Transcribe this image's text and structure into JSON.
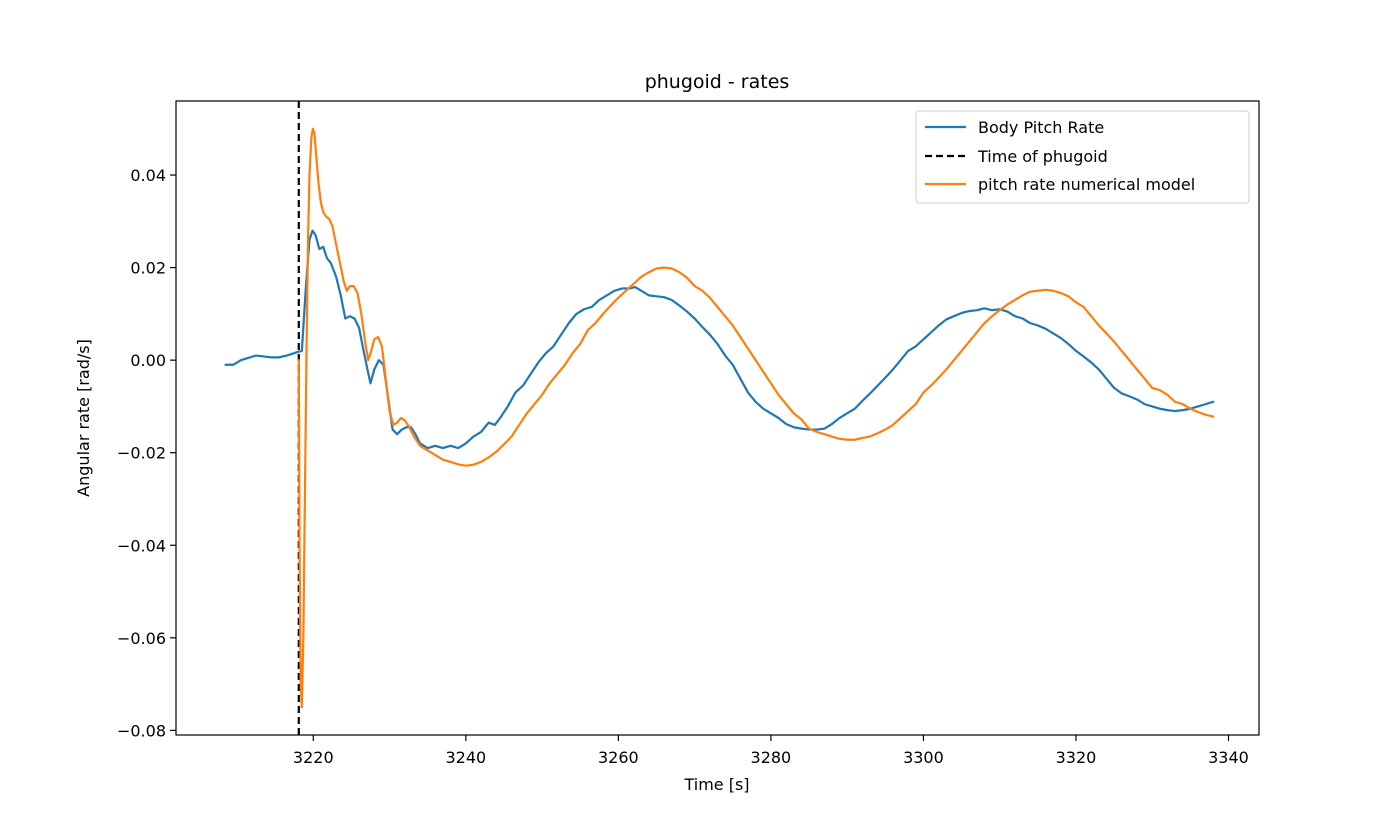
{
  "chart_data": {
    "type": "line",
    "title": "phugoid - rates",
    "xlabel": "Time [s]",
    "ylabel": "Angular rate [rad/s]",
    "xlim": [
      3202,
      3344
    ],
    "ylim": [
      -0.081,
      0.056
    ],
    "x_ticks": [
      3220,
      3240,
      3260,
      3280,
      3300,
      3320,
      3340
    ],
    "y_ticks": [
      -0.08,
      -0.06,
      -0.04,
      -0.02,
      0.0,
      0.02,
      0.04
    ],
    "y_tick_labels": [
      "−0.08",
      "−0.06",
      "−0.04",
      "−0.02",
      "0.00",
      "0.02",
      "0.04"
    ],
    "grid": false,
    "legend_position": "top-right",
    "series": [
      {
        "name": "Body Pitch Rate",
        "color": "#1f77b4",
        "style": "solid",
        "points": [
          [
            3208.5,
            -0.001
          ],
          [
            3209.5,
            -0.001
          ],
          [
            3210.5,
            0.0
          ],
          [
            3211.5,
            0.0005
          ],
          [
            3212.5,
            0.001
          ],
          [
            3213.5,
            0.0008
          ],
          [
            3214.5,
            0.0006
          ],
          [
            3215.5,
            0.0006
          ],
          [
            3216.5,
            0.001
          ],
          [
            3217.5,
            0.0015
          ],
          [
            3218.0,
            0.0018
          ],
          [
            3218.5,
            0.002
          ],
          [
            3219.0,
            0.015
          ],
          [
            3219.5,
            0.026
          ],
          [
            3219.9,
            0.028
          ],
          [
            3220.3,
            0.027
          ],
          [
            3220.8,
            0.024
          ],
          [
            3221.3,
            0.0245
          ],
          [
            3221.8,
            0.022
          ],
          [
            3222.3,
            0.021
          ],
          [
            3223.0,
            0.018
          ],
          [
            3223.6,
            0.014
          ],
          [
            3224.2,
            0.009
          ],
          [
            3224.8,
            0.0095
          ],
          [
            3225.4,
            0.009
          ],
          [
            3226.0,
            0.007
          ],
          [
            3226.6,
            0.002
          ],
          [
            3227.1,
            -0.002
          ],
          [
            3227.5,
            -0.005
          ],
          [
            3228.0,
            -0.002
          ],
          [
            3228.6,
            0.0
          ],
          [
            3229.2,
            -0.001
          ],
          [
            3229.8,
            -0.008
          ],
          [
            3230.4,
            -0.015
          ],
          [
            3231.0,
            -0.016
          ],
          [
            3231.6,
            -0.015
          ],
          [
            3232.2,
            -0.0145
          ],
          [
            3232.8,
            -0.0145
          ],
          [
            3233.4,
            -0.016
          ],
          [
            3234.0,
            -0.018
          ],
          [
            3235.0,
            -0.019
          ],
          [
            3236.0,
            -0.0185
          ],
          [
            3237.0,
            -0.019
          ],
          [
            3238.0,
            -0.0185
          ],
          [
            3239.0,
            -0.019
          ],
          [
            3240.0,
            -0.018
          ],
          [
            3241.0,
            -0.0165
          ],
          [
            3242.0,
            -0.0155
          ],
          [
            3243.0,
            -0.0135
          ],
          [
            3243.8,
            -0.014
          ],
          [
            3244.5,
            -0.0125
          ],
          [
            3245.5,
            -0.01
          ],
          [
            3246.5,
            -0.007
          ],
          [
            3247.5,
            -0.0055
          ],
          [
            3248.5,
            -0.003
          ],
          [
            3249.5,
            -0.0005
          ],
          [
            3250.5,
            0.0015
          ],
          [
            3251.5,
            0.003
          ],
          [
            3252.5,
            0.0055
          ],
          [
            3253.5,
            0.008
          ],
          [
            3254.5,
            0.01
          ],
          [
            3255.5,
            0.011
          ],
          [
            3256.5,
            0.0115
          ],
          [
            3257.5,
            0.013
          ],
          [
            3258.5,
            0.014
          ],
          [
            3259.5,
            0.015
          ],
          [
            3260.5,
            0.0155
          ],
          [
            3261.5,
            0.0155
          ],
          [
            3262.2,
            0.0158
          ],
          [
            3263.0,
            0.015
          ],
          [
            3264.0,
            0.014
          ],
          [
            3265.0,
            0.0138
          ],
          [
            3266.0,
            0.0136
          ],
          [
            3267.0,
            0.013
          ],
          [
            3268.0,
            0.0118
          ],
          [
            3269.0,
            0.0105
          ],
          [
            3270.0,
            0.009
          ],
          [
            3271.0,
            0.0072
          ],
          [
            3272.0,
            0.0055
          ],
          [
            3273.0,
            0.0035
          ],
          [
            3274.0,
            0.001
          ],
          [
            3275.0,
            -0.001
          ],
          [
            3276.0,
            -0.004
          ],
          [
            3277.0,
            -0.007
          ],
          [
            3278.0,
            -0.009
          ],
          [
            3279.0,
            -0.0105
          ],
          [
            3280.0,
            -0.0115
          ],
          [
            3281.0,
            -0.0125
          ],
          [
            3282.0,
            -0.0138
          ],
          [
            3283.0,
            -0.0145
          ],
          [
            3284.0,
            -0.0148
          ],
          [
            3285.0,
            -0.015
          ],
          [
            3286.0,
            -0.015
          ],
          [
            3287.0,
            -0.0148
          ],
          [
            3288.0,
            -0.0138
          ],
          [
            3289.0,
            -0.0125
          ],
          [
            3290.0,
            -0.0115
          ],
          [
            3291.0,
            -0.0105
          ],
          [
            3292.0,
            -0.0088
          ],
          [
            3293.0,
            -0.0072
          ],
          [
            3294.0,
            -0.0055
          ],
          [
            3295.0,
            -0.0038
          ],
          [
            3296.0,
            -0.002
          ],
          [
            3297.0,
            0.0
          ],
          [
            3298.0,
            0.002
          ],
          [
            3299.0,
            0.003
          ],
          [
            3300.0,
            0.0045
          ],
          [
            3301.0,
            0.006
          ],
          [
            3302.0,
            0.0075
          ],
          [
            3303.0,
            0.0088
          ],
          [
            3304.0,
            0.0095
          ],
          [
            3305.0,
            0.0102
          ],
          [
            3306.0,
            0.0106
          ],
          [
            3307.0,
            0.0108
          ],
          [
            3308.0,
            0.0112
          ],
          [
            3309.0,
            0.0108
          ],
          [
            3310.0,
            0.011
          ],
          [
            3311.0,
            0.0105
          ],
          [
            3312.0,
            0.0095
          ],
          [
            3313.0,
            0.009
          ],
          [
            3314.0,
            0.008
          ],
          [
            3315.0,
            0.0075
          ],
          [
            3316.0,
            0.0068
          ],
          [
            3317.0,
            0.0058
          ],
          [
            3318.0,
            0.0048
          ],
          [
            3319.0,
            0.0035
          ],
          [
            3320.0,
            0.002
          ],
          [
            3321.0,
            0.0008
          ],
          [
            3322.0,
            -0.0005
          ],
          [
            3323.0,
            -0.002
          ],
          [
            3324.0,
            -0.004
          ],
          [
            3325.0,
            -0.006
          ],
          [
            3326.0,
            -0.0072
          ],
          [
            3327.0,
            -0.0078
          ],
          [
            3328.0,
            -0.0085
          ],
          [
            3329.0,
            -0.0095
          ],
          [
            3330.0,
            -0.01
          ],
          [
            3331.0,
            -0.0105
          ],
          [
            3332.0,
            -0.0108
          ],
          [
            3333.0,
            -0.011
          ],
          [
            3334.0,
            -0.0108
          ],
          [
            3335.0,
            -0.0105
          ],
          [
            3336.0,
            -0.01
          ],
          [
            3337.0,
            -0.0095
          ],
          [
            3338.0,
            -0.009
          ]
        ]
      },
      {
        "name": "Time of phugoid",
        "color": "#000000",
        "style": "dashed",
        "vertical_line_x": 3218.1
      },
      {
        "name": "pitch rate numerical model",
        "color": "#ff7f0e",
        "style": "solid",
        "points": [
          [
            3218.1,
            0.0
          ],
          [
            3218.2,
            -0.04
          ],
          [
            3218.35,
            -0.07
          ],
          [
            3218.5,
            -0.075
          ],
          [
            3218.7,
            -0.06
          ],
          [
            3218.9,
            -0.03
          ],
          [
            3219.1,
            0.0
          ],
          [
            3219.3,
            0.025
          ],
          [
            3219.5,
            0.04
          ],
          [
            3219.75,
            0.048
          ],
          [
            3219.95,
            0.05
          ],
          [
            3220.15,
            0.049
          ],
          [
            3220.4,
            0.044
          ],
          [
            3220.7,
            0.038
          ],
          [
            3221.0,
            0.034
          ],
          [
            3221.3,
            0.032
          ],
          [
            3221.7,
            0.031
          ],
          [
            3222.1,
            0.0305
          ],
          [
            3222.5,
            0.029
          ],
          [
            3223.0,
            0.025
          ],
          [
            3223.5,
            0.021
          ],
          [
            3224.0,
            0.017
          ],
          [
            3224.4,
            0.015
          ],
          [
            3224.8,
            0.016
          ],
          [
            3225.3,
            0.016
          ],
          [
            3225.8,
            0.0145
          ],
          [
            3226.3,
            0.01
          ],
          [
            3226.8,
            0.004
          ],
          [
            3227.2,
            0.0
          ],
          [
            3227.6,
            0.002
          ],
          [
            3228.0,
            0.0045
          ],
          [
            3228.5,
            0.005
          ],
          [
            3229.0,
            0.003
          ],
          [
            3229.5,
            -0.004
          ],
          [
            3230.0,
            -0.011
          ],
          [
            3230.5,
            -0.014
          ],
          [
            3231.0,
            -0.0135
          ],
          [
            3231.5,
            -0.0125
          ],
          [
            3232.0,
            -0.013
          ],
          [
            3232.6,
            -0.0145
          ],
          [
            3233.2,
            -0.0165
          ],
          [
            3234.0,
            -0.0185
          ],
          [
            3235.0,
            -0.0195
          ],
          [
            3236.0,
            -0.0205
          ],
          [
            3237.0,
            -0.0215
          ],
          [
            3238.0,
            -0.022
          ],
          [
            3239.0,
            -0.0225
          ],
          [
            3240.0,
            -0.0228
          ],
          [
            3241.0,
            -0.0226
          ],
          [
            3242.0,
            -0.022
          ],
          [
            3243.0,
            -0.021
          ],
          [
            3244.0,
            -0.0198
          ],
          [
            3245.0,
            -0.0182
          ],
          [
            3246.0,
            -0.0165
          ],
          [
            3247.0,
            -0.014
          ],
          [
            3248.0,
            -0.0115
          ],
          [
            3249.0,
            -0.0095
          ],
          [
            3250.0,
            -0.0075
          ],
          [
            3251.0,
            -0.005
          ],
          [
            3252.0,
            -0.003
          ],
          [
            3253.0,
            -0.001
          ],
          [
            3254.0,
            0.0015
          ],
          [
            3255.0,
            0.0035
          ],
          [
            3256.0,
            0.0065
          ],
          [
            3257.0,
            0.008
          ],
          [
            3258.0,
            0.01
          ],
          [
            3259.0,
            0.0118
          ],
          [
            3260.0,
            0.0135
          ],
          [
            3261.0,
            0.015
          ],
          [
            3262.0,
            0.0165
          ],
          [
            3263.0,
            0.018
          ],
          [
            3264.0,
            0.019
          ],
          [
            3265.0,
            0.0198
          ],
          [
            3266.0,
            0.02
          ],
          [
            3267.0,
            0.0198
          ],
          [
            3268.0,
            0.019
          ],
          [
            3269.0,
            0.0178
          ],
          [
            3270.0,
            0.016
          ],
          [
            3271.0,
            0.015
          ],
          [
            3272.0,
            0.0135
          ],
          [
            3273.0,
            0.0115
          ],
          [
            3274.0,
            0.0095
          ],
          [
            3275.0,
            0.0075
          ],
          [
            3276.0,
            0.005
          ],
          [
            3277.0,
            0.0025
          ],
          [
            3278.0,
            0.0
          ],
          [
            3279.0,
            -0.0025
          ],
          [
            3280.0,
            -0.005
          ],
          [
            3281.0,
            -0.0075
          ],
          [
            3282.0,
            -0.0095
          ],
          [
            3283.0,
            -0.0115
          ],
          [
            3284.0,
            -0.0128
          ],
          [
            3285.0,
            -0.0148
          ],
          [
            3286.0,
            -0.0155
          ],
          [
            3287.0,
            -0.016
          ],
          [
            3288.0,
            -0.0165
          ],
          [
            3289.0,
            -0.017
          ],
          [
            3290.0,
            -0.0172
          ],
          [
            3291.0,
            -0.0172
          ],
          [
            3292.0,
            -0.0168
          ],
          [
            3293.0,
            -0.0165
          ],
          [
            3294.0,
            -0.0158
          ],
          [
            3295.0,
            -0.015
          ],
          [
            3296.0,
            -0.014
          ],
          [
            3297.0,
            -0.0125
          ],
          [
            3298.0,
            -0.011
          ],
          [
            3299.0,
            -0.0095
          ],
          [
            3300.0,
            -0.007
          ],
          [
            3301.0,
            -0.0055
          ],
          [
            3302.0,
            -0.0038
          ],
          [
            3303.0,
            -0.002
          ],
          [
            3304.0,
            0.0
          ],
          [
            3305.0,
            0.002
          ],
          [
            3306.0,
            0.004
          ],
          [
            3307.0,
            0.006
          ],
          [
            3308.0,
            0.008
          ],
          [
            3309.0,
            0.0095
          ],
          [
            3310.0,
            0.0108
          ],
          [
            3311.0,
            0.012
          ],
          [
            3312.0,
            0.013
          ],
          [
            3313.0,
            0.014
          ],
          [
            3314.0,
            0.0148
          ],
          [
            3315.0,
            0.015
          ],
          [
            3316.0,
            0.0152
          ],
          [
            3317.0,
            0.015
          ],
          [
            3318.0,
            0.0145
          ],
          [
            3319.0,
            0.0138
          ],
          [
            3320.0,
            0.0125
          ],
          [
            3321.0,
            0.0115
          ],
          [
            3322.0,
            0.0095
          ],
          [
            3323.0,
            0.0075
          ],
          [
            3324.0,
            0.0058
          ],
          [
            3325.0,
            0.004
          ],
          [
            3326.0,
            0.002
          ],
          [
            3327.0,
            0.0
          ],
          [
            3328.0,
            -0.002
          ],
          [
            3329.0,
            -0.004
          ],
          [
            3330.0,
            -0.006
          ],
          [
            3331.0,
            -0.0065
          ],
          [
            3332.0,
            -0.0075
          ],
          [
            3333.0,
            -0.009
          ],
          [
            3334.0,
            -0.0095
          ],
          [
            3335.0,
            -0.0105
          ],
          [
            3336.0,
            -0.0112
          ],
          [
            3337.0,
            -0.0118
          ],
          [
            3338.0,
            -0.0122
          ]
        ]
      }
    ]
  }
}
